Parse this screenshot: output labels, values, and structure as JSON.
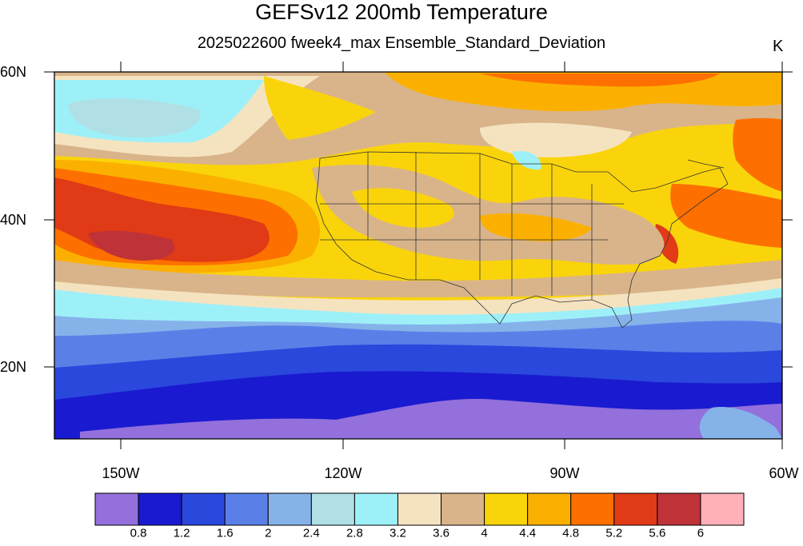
{
  "header": {
    "title": "GEFSv12 200mb Temperature",
    "subtitle": "2025022600 fweek4_max Ensemble_Standard_Deviation",
    "units": "K"
  },
  "axes": {
    "lat_labels": [
      "60N",
      "40N",
      "20N"
    ],
    "lon_labels": [
      "150W",
      "120W",
      "90W",
      "60W"
    ]
  },
  "colorbar": {
    "colors": [
      "#9370db",
      "#1a1ad0",
      "#2a48dc",
      "#5a80e8",
      "#86b2ea",
      "#b0e0e6",
      "#9ef0f8",
      "#f5e3c0",
      "#d9b48a",
      "#fad40a",
      "#fbb000",
      "#fd7000",
      "#e03a16",
      "#be3238",
      "#ffb0b8"
    ],
    "labels": [
      "0.8",
      "1.2",
      "1.6",
      "2",
      "2.4",
      "2.8",
      "3.2",
      "3.6",
      "4",
      "4.4",
      "4.8",
      "5.2",
      "5.6",
      "6"
    ]
  }
}
